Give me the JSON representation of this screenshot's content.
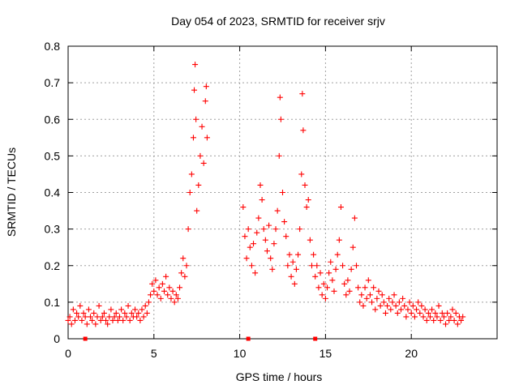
{
  "chart_data": {
    "type": "scatter",
    "title": "Day 054 of 2023, SRMTID for receiver srjv",
    "xlabel": "GPS time / hours",
    "ylabel": "SRMTID / TECUs",
    "xlim": [
      0,
      25
    ],
    "ylim": [
      0,
      0.8
    ],
    "xticks": [
      0,
      5,
      10,
      15,
      20
    ],
    "xtick_labels": [
      "0",
      "5",
      "10",
      "15",
      "20"
    ],
    "yticks": [
      0,
      0.1,
      0.2,
      0.3,
      0.4,
      0.5,
      0.6,
      0.7,
      0.8
    ],
    "ytick_labels": [
      "0",
      "0.1",
      "0.2",
      "0.3",
      "0.4",
      "0.5",
      "0.6",
      "0.7",
      "0.8"
    ],
    "grid": true,
    "marker": "plus",
    "color": "#ff0000",
    "series": [
      {
        "name": "SRMTID",
        "points": [
          [
            0.0,
            0.05
          ],
          [
            0.1,
            0.06
          ],
          [
            0.2,
            0.04
          ],
          [
            0.3,
            0.08
          ],
          [
            0.4,
            0.05
          ],
          [
            0.5,
            0.07
          ],
          [
            0.6,
            0.06
          ],
          [
            0.7,
            0.09
          ],
          [
            0.8,
            0.05
          ],
          [
            0.9,
            0.07
          ],
          [
            1.0,
            0.06
          ],
          [
            1.1,
            0.04
          ],
          [
            1.2,
            0.08
          ],
          [
            1.3,
            0.06
          ],
          [
            1.4,
            0.05
          ],
          [
            1.5,
            0.07
          ],
          [
            1.6,
            0.04
          ],
          [
            1.7,
            0.06
          ],
          [
            1.8,
            0.09
          ],
          [
            1.9,
            0.05
          ],
          [
            2.0,
            0.06
          ],
          [
            2.1,
            0.07
          ],
          [
            2.2,
            0.05
          ],
          [
            2.3,
            0.04
          ],
          [
            2.4,
            0.06
          ],
          [
            2.5,
            0.08
          ],
          [
            2.6,
            0.05
          ],
          [
            2.7,
            0.06
          ],
          [
            2.8,
            0.07
          ],
          [
            2.9,
            0.05
          ],
          [
            3.0,
            0.06
          ],
          [
            3.1,
            0.08
          ],
          [
            3.2,
            0.05
          ],
          [
            3.3,
            0.07
          ],
          [
            3.4,
            0.06
          ],
          [
            3.5,
            0.09
          ],
          [
            3.6,
            0.05
          ],
          [
            3.7,
            0.07
          ],
          [
            3.8,
            0.06
          ],
          [
            3.9,
            0.08
          ],
          [
            4.0,
            0.06
          ],
          [
            4.1,
            0.07
          ],
          [
            4.2,
            0.05
          ],
          [
            4.3,
            0.08
          ],
          [
            4.4,
            0.06
          ],
          [
            4.5,
            0.09
          ],
          [
            4.6,
            0.07
          ],
          [
            4.7,
            0.1
          ],
          [
            4.8,
            0.12
          ],
          [
            4.9,
            0.15
          ],
          [
            5.0,
            0.13
          ],
          [
            5.1,
            0.16
          ],
          [
            5.2,
            0.12
          ],
          [
            5.3,
            0.14
          ],
          [
            5.4,
            0.11
          ],
          [
            5.5,
            0.15
          ],
          [
            5.6,
            0.13
          ],
          [
            5.7,
            0.17
          ],
          [
            5.8,
            0.12
          ],
          [
            5.9,
            0.14
          ],
          [
            6.0,
            0.11
          ],
          [
            6.1,
            0.13
          ],
          [
            6.2,
            0.1
          ],
          [
            6.3,
            0.12
          ],
          [
            6.4,
            0.11
          ],
          [
            6.5,
            0.14
          ],
          [
            6.6,
            0.18
          ],
          [
            6.7,
            0.22
          ],
          [
            6.8,
            0.17
          ],
          [
            6.9,
            0.2
          ],
          [
            7.0,
            0.3
          ],
          [
            7.1,
            0.4
          ],
          [
            7.2,
            0.45
          ],
          [
            7.3,
            0.55
          ],
          [
            7.35,
            0.68
          ],
          [
            7.4,
            0.75
          ],
          [
            7.45,
            0.6
          ],
          [
            7.5,
            0.35
          ],
          [
            7.6,
            0.42
          ],
          [
            7.7,
            0.5
          ],
          [
            7.8,
            0.58
          ],
          [
            7.9,
            0.48
          ],
          [
            8.0,
            0.65
          ],
          [
            8.05,
            0.69
          ],
          [
            8.1,
            0.55
          ],
          [
            10.2,
            0.36
          ],
          [
            10.3,
            0.28
          ],
          [
            10.4,
            0.22
          ],
          [
            10.5,
            0.3
          ],
          [
            10.6,
            0.25
          ],
          [
            10.7,
            0.2
          ],
          [
            10.8,
            0.26
          ],
          [
            10.9,
            0.18
          ],
          [
            11.0,
            0.29
          ],
          [
            11.1,
            0.33
          ],
          [
            11.2,
            0.42
          ],
          [
            11.3,
            0.38
          ],
          [
            11.4,
            0.3
          ],
          [
            11.5,
            0.27
          ],
          [
            11.6,
            0.24
          ],
          [
            11.7,
            0.31
          ],
          [
            11.8,
            0.22
          ],
          [
            11.9,
            0.19
          ],
          [
            12.0,
            0.26
          ],
          [
            12.1,
            0.3
          ],
          [
            12.2,
            0.35
          ],
          [
            12.3,
            0.5
          ],
          [
            12.35,
            0.66
          ],
          [
            12.4,
            0.6
          ],
          [
            12.5,
            0.4
          ],
          [
            12.6,
            0.32
          ],
          [
            12.7,
            0.28
          ],
          [
            12.8,
            0.2
          ],
          [
            12.9,
            0.23
          ],
          [
            13.0,
            0.17
          ],
          [
            13.1,
            0.21
          ],
          [
            13.2,
            0.15
          ],
          [
            13.3,
            0.19
          ],
          [
            13.4,
            0.23
          ],
          [
            13.5,
            0.3
          ],
          [
            13.6,
            0.45
          ],
          [
            13.65,
            0.67
          ],
          [
            13.7,
            0.57
          ],
          [
            13.8,
            0.42
          ],
          [
            13.9,
            0.36
          ],
          [
            14.0,
            0.38
          ],
          [
            14.1,
            0.27
          ],
          [
            14.2,
            0.2
          ],
          [
            14.3,
            0.23
          ],
          [
            14.4,
            0.17
          ],
          [
            14.5,
            0.2
          ],
          [
            14.6,
            0.14
          ],
          [
            14.7,
            0.18
          ],
          [
            14.8,
            0.12
          ],
          [
            14.9,
            0.15
          ],
          [
            15.0,
            0.11
          ],
          [
            15.1,
            0.14
          ],
          [
            15.2,
            0.18
          ],
          [
            15.3,
            0.21
          ],
          [
            15.4,
            0.16
          ],
          [
            15.5,
            0.13
          ],
          [
            15.6,
            0.19
          ],
          [
            15.7,
            0.23
          ],
          [
            15.8,
            0.27
          ],
          [
            15.9,
            0.36
          ],
          [
            16.0,
            0.2
          ],
          [
            16.1,
            0.15
          ],
          [
            16.2,
            0.12
          ],
          [
            16.3,
            0.16
          ],
          [
            16.4,
            0.13
          ],
          [
            16.5,
            0.19
          ],
          [
            16.6,
            0.25
          ],
          [
            16.7,
            0.33
          ],
          [
            16.8,
            0.2
          ],
          [
            16.9,
            0.14
          ],
          [
            17.0,
            0.1
          ],
          [
            17.1,
            0.12
          ],
          [
            17.2,
            0.09
          ],
          [
            17.3,
            0.14
          ],
          [
            17.4,
            0.11
          ],
          [
            17.5,
            0.16
          ],
          [
            17.6,
            0.12
          ],
          [
            17.7,
            0.1
          ],
          [
            17.8,
            0.14
          ],
          [
            17.9,
            0.08
          ],
          [
            18.0,
            0.11
          ],
          [
            18.1,
            0.13
          ],
          [
            18.2,
            0.09
          ],
          [
            18.3,
            0.12
          ],
          [
            18.4,
            0.1
          ],
          [
            18.5,
            0.07
          ],
          [
            18.6,
            0.09
          ],
          [
            18.7,
            0.11
          ],
          [
            18.8,
            0.08
          ],
          [
            18.9,
            0.1
          ],
          [
            19.0,
            0.12
          ],
          [
            19.1,
            0.09
          ],
          [
            19.2,
            0.07
          ],
          [
            19.3,
            0.1
          ],
          [
            19.4,
            0.08
          ],
          [
            19.5,
            0.11
          ],
          [
            19.6,
            0.09
          ],
          [
            19.7,
            0.06
          ],
          [
            19.8,
            0.08
          ],
          [
            19.9,
            0.1
          ],
          [
            20.0,
            0.07
          ],
          [
            20.1,
            0.09
          ],
          [
            20.2,
            0.06
          ],
          [
            20.3,
            0.08
          ],
          [
            20.4,
            0.1
          ],
          [
            20.5,
            0.07
          ],
          [
            20.6,
            0.09
          ],
          [
            20.7,
            0.06
          ],
          [
            20.8,
            0.08
          ],
          [
            20.9,
            0.05
          ],
          [
            21.0,
            0.07
          ],
          [
            21.1,
            0.06
          ],
          [
            21.2,
            0.08
          ],
          [
            21.3,
            0.05
          ],
          [
            21.4,
            0.07
          ],
          [
            21.5,
            0.06
          ],
          [
            21.6,
            0.09
          ],
          [
            21.7,
            0.05
          ],
          [
            21.8,
            0.07
          ],
          [
            21.9,
            0.06
          ],
          [
            22.0,
            0.04
          ],
          [
            22.1,
            0.07
          ],
          [
            22.2,
            0.05
          ],
          [
            22.3,
            0.06
          ],
          [
            22.4,
            0.08
          ],
          [
            22.5,
            0.05
          ],
          [
            22.6,
            0.07
          ],
          [
            22.7,
            0.04
          ],
          [
            22.8,
            0.06
          ],
          [
            22.9,
            0.05
          ],
          [
            23.0,
            0.06
          ]
        ]
      }
    ],
    "axis_markers_x": [
      1.0,
      10.5,
      14.4
    ]
  }
}
